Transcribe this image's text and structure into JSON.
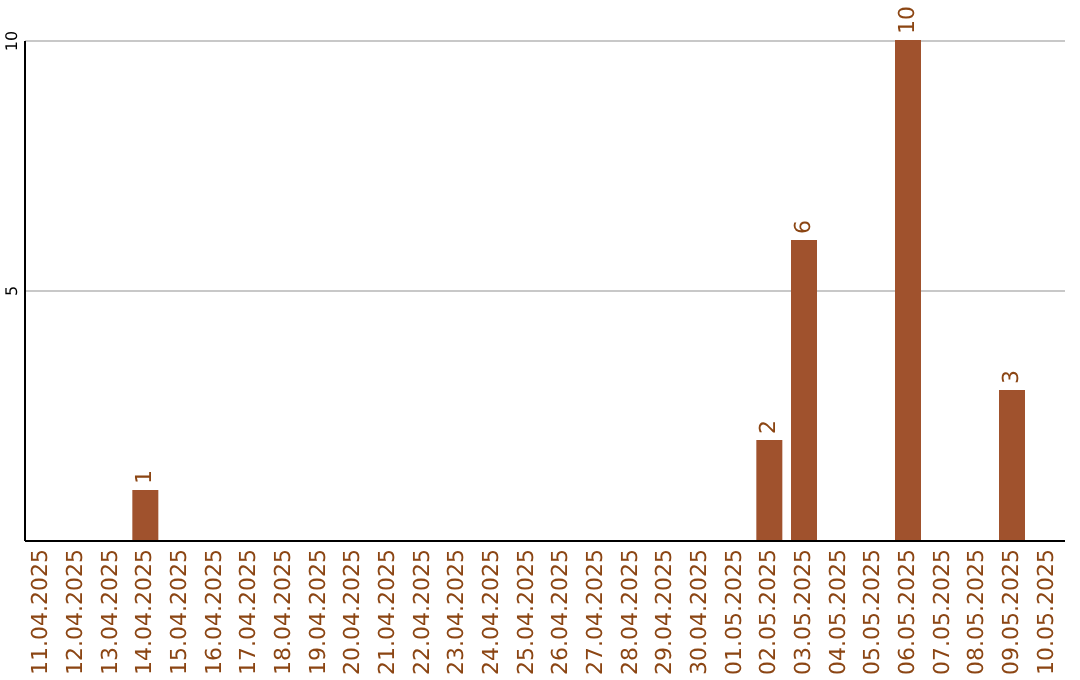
{
  "chart_data": {
    "type": "bar",
    "categories": [
      "11.04.2025",
      "12.04.2025",
      "13.04.2025",
      "14.04.2025",
      "15.04.2025",
      "16.04.2025",
      "17.04.2025",
      "18.04.2025",
      "19.04.2025",
      "20.04.2025",
      "21.04.2025",
      "22.04.2025",
      "23.04.2025",
      "24.04.2025",
      "25.04.2025",
      "26.04.2025",
      "27.04.2025",
      "28.04.2025",
      "29.04.2025",
      "30.04.2025",
      "01.05.2025",
      "02.05.2025",
      "03.05.2025",
      "04.05.2025",
      "05.05.2025",
      "06.05.2025",
      "07.05.2025",
      "08.05.2025",
      "09.05.2025",
      "10.05.2025"
    ],
    "values": [
      0,
      0,
      0,
      1,
      0,
      0,
      0,
      0,
      0,
      0,
      0,
      0,
      0,
      0,
      0,
      0,
      0,
      0,
      0,
      0,
      0,
      2,
      6,
      0,
      0,
      10,
      0,
      0,
      3,
      0
    ],
    "value_labels": [
      null,
      null,
      null,
      "1",
      null,
      null,
      null,
      null,
      null,
      null,
      null,
      null,
      null,
      null,
      null,
      null,
      null,
      null,
      null,
      null,
      null,
      "2",
      "6",
      null,
      null,
      "10",
      null,
      null,
      "3",
      null
    ],
    "color": "#a0522d",
    "ylim": [
      0,
      10
    ],
    "yticks": [
      5,
      10
    ],
    "grid": "y"
  }
}
